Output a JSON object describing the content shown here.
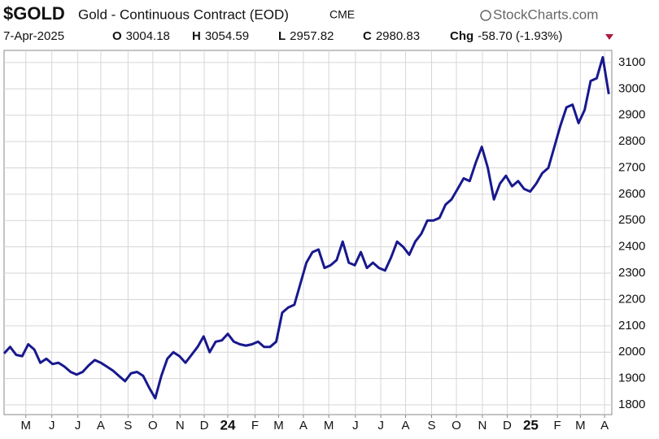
{
  "chart_data": {
    "type": "line",
    "title": "$GOLD",
    "subtitle": "Gold - Continuous Contract (EOD)",
    "exchange": "CME",
    "source": "StockCharts.com",
    "date": "7-Apr-2025",
    "quote": [
      {
        "label": "O",
        "value": "3004.18"
      },
      {
        "label": "H",
        "value": "3054.59"
      },
      {
        "label": "L",
        "value": "2957.82"
      },
      {
        "label": "C",
        "value": "2980.83"
      },
      {
        "label": "Chg",
        "value": "-58.70 (-1.93%)"
      }
    ],
    "color": "#18188e",
    "grid": true,
    "xlim": [
      0,
      100.5
    ],
    "ylim": [
      1763,
      3146
    ],
    "yticks": [
      1800,
      1900,
      2000,
      2100,
      2200,
      2300,
      2400,
      2500,
      2600,
      2700,
      2800,
      2900,
      3000,
      3100
    ],
    "xticks": [
      {
        "value": 3.6,
        "label": "M"
      },
      {
        "value": 7.9,
        "label": "J"
      },
      {
        "value": 12.2,
        "label": "J"
      },
      {
        "value": 16.0,
        "label": "A"
      },
      {
        "value": 20.5,
        "label": "S"
      },
      {
        "value": 24.6,
        "label": "O"
      },
      {
        "value": 29.1,
        "label": "N"
      },
      {
        "value": 33.1,
        "label": "D"
      },
      {
        "value": 37.0,
        "label": "24"
      },
      {
        "value": 41.5,
        "label": "F"
      },
      {
        "value": 45.4,
        "label": "M"
      },
      {
        "value": 49.5,
        "label": "A"
      },
      {
        "value": 53.7,
        "label": "M"
      },
      {
        "value": 58.1,
        "label": "J"
      },
      {
        "value": 62.3,
        "label": "J"
      },
      {
        "value": 66.4,
        "label": "A"
      },
      {
        "value": 70.7,
        "label": "S"
      },
      {
        "value": 74.8,
        "label": "O"
      },
      {
        "value": 79.1,
        "label": "N"
      },
      {
        "value": 83.2,
        "label": "D"
      },
      {
        "value": 87.1,
        "label": "25"
      },
      {
        "value": 91.5,
        "label": "F"
      },
      {
        "value": 95.3,
        "label": "M"
      },
      {
        "value": 99.3,
        "label": "A"
      }
    ],
    "values": [
      1995,
      2020,
      1990,
      1985,
      2030,
      2010,
      1960,
      1975,
      1955,
      1960,
      1945,
      1925,
      1915,
      1925,
      1950,
      1970,
      1960,
      1945,
      1930,
      1910,
      1890,
      1920,
      1925,
      1910,
      1865,
      1825,
      1910,
      1975,
      2000,
      1985,
      1960,
      1990,
      2020,
      2060,
      2000,
      2040,
      2045,
      2070,
      2040,
      2030,
      2025,
      2030,
      2040,
      2020,
      2020,
      2040,
      2150,
      2170,
      2180,
      2260,
      2340,
      2380,
      2390,
      2320,
      2330,
      2350,
      2420,
      2340,
      2330,
      2380,
      2320,
      2340,
      2320,
      2310,
      2360,
      2420,
      2400,
      2370,
      2420,
      2450,
      2500,
      2500,
      2510,
      2560,
      2580,
      2620,
      2660,
      2650,
      2720,
      2780,
      2700,
      2580,
      2640,
      2670,
      2630,
      2650,
      2620,
      2610,
      2640,
      2680,
      2700,
      2780,
      2860,
      2930,
      2940,
      2870,
      2920,
      3030,
      3040,
      3120,
      2980
    ]
  }
}
